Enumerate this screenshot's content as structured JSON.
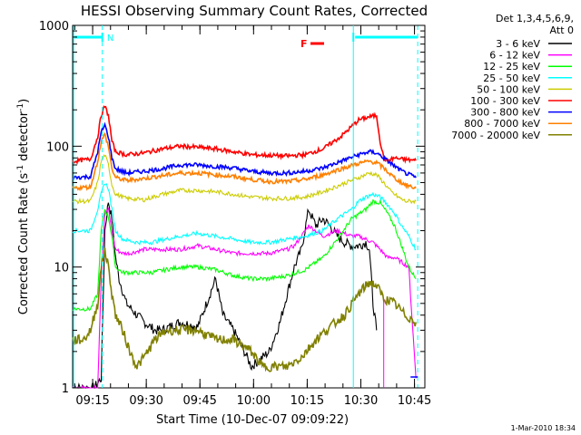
{
  "chart_data": {
    "type": "line",
    "title": "HESSI Observing Summary Count Rates, Corrected",
    "xlabel": "Start Time (10-Dec-07 09:09:22)",
    "ylabel_main": "Corrected Count Rate (s",
    "ylabel_sup1": "-1",
    "ylabel_mid": " detector",
    "ylabel_sup2": "-1",
    "ylabel_end": ")",
    "footer": "1-Mar-2010 18:34",
    "legend_title1": "Det 1,3,4,5,6,9,",
    "legend_title2": "Att 0",
    "ylog": true,
    "ylim": [
      1,
      1000
    ],
    "xlim_minutes": [
      0,
      36.5
    ],
    "x_tick_labels": [
      {
        "label": "09:15",
        "min": 5.6
      },
      {
        "label": "09:30",
        "min": 20.6
      },
      {
        "label": "09:45",
        "min": 35.6
      },
      {
        "label": "10:00",
        "min": 50.6
      },
      {
        "label": "10:15",
        "min": 65.6
      },
      {
        "label": "10:30",
        "min": 80.6
      },
      {
        "label": "10:45",
        "min": 95.6
      }
    ],
    "x_range_minutes": [
      0,
      98.5
    ],
    "y_tick_labels": [
      {
        "label": "1",
        "value": 1
      },
      {
        "label": "10",
        "value": 10
      },
      {
        "label": "100",
        "value": 100
      },
      {
        "label": "1000",
        "value": 1000
      }
    ],
    "attenuator_label": "N",
    "flare_label": "F",
    "series": [
      {
        "name": "3 - 6 keV",
        "color": "#000000",
        "points": [
          [
            0,
            1.0
          ],
          [
            4,
            1.0
          ],
          [
            6,
            1.0
          ],
          [
            8,
            1.2
          ],
          [
            9,
            20
          ],
          [
            10,
            35
          ],
          [
            11,
            25
          ],
          [
            12,
            12
          ],
          [
            13,
            8
          ],
          [
            15,
            5
          ],
          [
            18,
            4
          ],
          [
            20,
            3.5
          ],
          [
            23,
            3
          ],
          [
            25,
            3
          ],
          [
            30,
            3.5
          ],
          [
            35,
            3.2
          ],
          [
            40,
            8
          ],
          [
            42,
            4
          ],
          [
            45,
            3
          ],
          [
            48,
            2
          ],
          [
            50,
            1.5
          ],
          [
            55,
            2
          ],
          [
            58,
            3.5
          ],
          [
            60,
            6
          ],
          [
            62,
            10
          ],
          [
            64,
            14
          ],
          [
            66,
            30
          ],
          [
            68,
            22
          ],
          [
            70,
            25
          ],
          [
            72,
            22
          ],
          [
            74,
            18
          ],
          [
            76,
            16
          ],
          [
            78,
            15
          ],
          [
            80,
            15
          ],
          [
            82,
            16
          ],
          [
            83,
            14
          ],
          [
            84,
            5
          ],
          [
            85,
            3
          ]
        ]
      },
      {
        "name": "6 - 12 keV",
        "color": "#ff00ff",
        "points": [
          [
            0,
            1.0
          ],
          [
            7,
            1.0
          ],
          [
            8,
            8
          ],
          [
            9,
            28
          ],
          [
            10,
            30
          ],
          [
            11,
            20
          ],
          [
            12,
            14
          ],
          [
            14,
            13
          ],
          [
            16,
            13
          ],
          [
            20,
            14
          ],
          [
            25,
            14
          ],
          [
            30,
            14
          ],
          [
            35,
            15
          ],
          [
            40,
            14
          ],
          [
            45,
            13
          ],
          [
            50,
            13
          ],
          [
            55,
            13
          ],
          [
            60,
            14
          ],
          [
            62,
            15
          ],
          [
            64,
            18
          ],
          [
            66,
            22
          ],
          [
            68,
            20
          ],
          [
            70,
            18
          ],
          [
            72,
            19
          ],
          [
            74,
            20
          ],
          [
            76,
            19
          ],
          [
            78,
            18
          ],
          [
            80,
            18
          ],
          [
            82,
            17
          ],
          [
            84,
            16
          ],
          [
            86,
            14
          ],
          [
            88,
            12
          ],
          [
            90,
            12
          ],
          [
            92,
            11
          ],
          [
            94,
            10
          ],
          [
            96,
            1.2
          ]
        ]
      },
      {
        "name": "12 - 25 keV",
        "color": "#00ff00",
        "points": [
          [
            0,
            4.5
          ],
          [
            5,
            4.5
          ],
          [
            7,
            6
          ],
          [
            8,
            20
          ],
          [
            9,
            30
          ],
          [
            10,
            26
          ],
          [
            11,
            18
          ],
          [
            12,
            10
          ],
          [
            14,
            9
          ],
          [
            18,
            9
          ],
          [
            22,
            9
          ],
          [
            26,
            9.5
          ],
          [
            30,
            10
          ],
          [
            35,
            10
          ],
          [
            40,
            9.5
          ],
          [
            45,
            8.5
          ],
          [
            50,
            8
          ],
          [
            55,
            8
          ],
          [
            60,
            8.5
          ],
          [
            65,
            9.5
          ],
          [
            70,
            12
          ],
          [
            74,
            17
          ],
          [
            78,
            25
          ],
          [
            82,
            30
          ],
          [
            84,
            35
          ],
          [
            86,
            34
          ],
          [
            88,
            28
          ],
          [
            90,
            22
          ],
          [
            92,
            15
          ],
          [
            94,
            10
          ],
          [
            96,
            8
          ]
        ]
      },
      {
        "name": "25 - 50 keV",
        "color": "#00ffff",
        "points": [
          [
            0,
            20
          ],
          [
            5,
            20
          ],
          [
            7,
            30
          ],
          [
            8,
            40
          ],
          [
            9,
            50
          ],
          [
            10,
            45
          ],
          [
            11,
            30
          ],
          [
            12,
            20
          ],
          [
            14,
            17
          ],
          [
            18,
            16
          ],
          [
            22,
            16
          ],
          [
            26,
            17
          ],
          [
            30,
            18
          ],
          [
            35,
            19
          ],
          [
            40,
            18
          ],
          [
            45,
            17
          ],
          [
            50,
            16
          ],
          [
            55,
            16
          ],
          [
            60,
            17
          ],
          [
            65,
            18
          ],
          [
            70,
            20
          ],
          [
            74,
            25
          ],
          [
            78,
            30
          ],
          [
            80,
            35
          ],
          [
            82,
            38
          ],
          [
            84,
            40
          ],
          [
            86,
            38
          ],
          [
            88,
            33
          ],
          [
            90,
            28
          ],
          [
            92,
            22
          ],
          [
            94,
            18
          ],
          [
            96,
            14
          ]
        ]
      },
      {
        "name": "50 - 100 keV",
        "color": "#cccc00",
        "points": [
          [
            0,
            35
          ],
          [
            5,
            35
          ],
          [
            7,
            50
          ],
          [
            8,
            75
          ],
          [
            9,
            85
          ],
          [
            10,
            70
          ],
          [
            11,
            48
          ],
          [
            12,
            40
          ],
          [
            15,
            37
          ],
          [
            20,
            36
          ],
          [
            25,
            40
          ],
          [
            30,
            43
          ],
          [
            35,
            43
          ],
          [
            40,
            42
          ],
          [
            45,
            40
          ],
          [
            50,
            38
          ],
          [
            55,
            37
          ],
          [
            60,
            37
          ],
          [
            65,
            38
          ],
          [
            70,
            42
          ],
          [
            75,
            48
          ],
          [
            80,
            55
          ],
          [
            83,
            60
          ],
          [
            85,
            58
          ],
          [
            87,
            50
          ],
          [
            89,
            42
          ],
          [
            91,
            38
          ],
          [
            93,
            35
          ],
          [
            96,
            35
          ]
        ]
      },
      {
        "name": "100 - 300 keV",
        "color": "#ff0000",
        "points": [
          [
            0,
            75
          ],
          [
            5,
            78
          ],
          [
            7,
            120
          ],
          [
            8,
            180
          ],
          [
            9,
            215
          ],
          [
            10,
            180
          ],
          [
            11,
            110
          ],
          [
            12,
            90
          ],
          [
            15,
            85
          ],
          [
            20,
            88
          ],
          [
            25,
            95
          ],
          [
            30,
            100
          ],
          [
            35,
            98
          ],
          [
            40,
            95
          ],
          [
            45,
            90
          ],
          [
            50,
            85
          ],
          [
            55,
            84
          ],
          [
            60,
            83
          ],
          [
            65,
            85
          ],
          [
            70,
            95
          ],
          [
            75,
            120
          ],
          [
            80,
            165
          ],
          [
            83,
            175
          ],
          [
            85,
            180
          ],
          [
            86,
            110
          ],
          [
            87,
            80
          ],
          [
            88,
            75
          ],
          [
            90,
            80
          ],
          [
            92,
            78
          ],
          [
            96,
            76
          ]
        ]
      },
      {
        "name": "300 - 800 keV",
        "color": "#0000ff",
        "points": [
          [
            0,
            55
          ],
          [
            5,
            56
          ],
          [
            7,
            90
          ],
          [
            8,
            130
          ],
          [
            9,
            150
          ],
          [
            10,
            120
          ],
          [
            11,
            80
          ],
          [
            12,
            65
          ],
          [
            15,
            60
          ],
          [
            20,
            62
          ],
          [
            25,
            65
          ],
          [
            30,
            70
          ],
          [
            35,
            70
          ],
          [
            40,
            68
          ],
          [
            45,
            66
          ],
          [
            50,
            62
          ],
          [
            55,
            60
          ],
          [
            60,
            60
          ],
          [
            65,
            62
          ],
          [
            70,
            66
          ],
          [
            75,
            75
          ],
          [
            80,
            85
          ],
          [
            83,
            90
          ],
          [
            85,
            88
          ],
          [
            87,
            80
          ],
          [
            89,
            72
          ],
          [
            91,
            65
          ],
          [
            93,
            60
          ],
          [
            96,
            55
          ]
        ]
      },
      {
        "name": "800 - 7000 keV",
        "color": "#ff8000",
        "points": [
          [
            0,
            45
          ],
          [
            5,
            46
          ],
          [
            7,
            75
          ],
          [
            8,
            110
          ],
          [
            9,
            125
          ],
          [
            10,
            100
          ],
          [
            11,
            65
          ],
          [
            12,
            55
          ],
          [
            15,
            52
          ],
          [
            20,
            54
          ],
          [
            25,
            57
          ],
          [
            30,
            60
          ],
          [
            35,
            60
          ],
          [
            40,
            58
          ],
          [
            45,
            56
          ],
          [
            50,
            53
          ],
          [
            55,
            51
          ],
          [
            60,
            51
          ],
          [
            65,
            53
          ],
          [
            70,
            58
          ],
          [
            75,
            65
          ],
          [
            80,
            72
          ],
          [
            83,
            75
          ],
          [
            85,
            73
          ],
          [
            87,
            66
          ],
          [
            89,
            58
          ],
          [
            91,
            52
          ],
          [
            93,
            48
          ],
          [
            96,
            45
          ]
        ]
      },
      {
        "name": "7000 - 20000 keV",
        "color": "#808000",
        "points": [
          [
            0,
            2.5
          ],
          [
            3,
            2.5
          ],
          [
            5,
            3
          ],
          [
            7,
            5
          ],
          [
            8,
            10
          ],
          [
            9,
            14
          ],
          [
            10,
            10
          ],
          [
            11,
            6
          ],
          [
            12,
            4
          ],
          [
            14,
            3
          ],
          [
            16,
            2
          ],
          [
            18,
            1.5
          ],
          [
            20,
            1.8
          ],
          [
            23,
            2.5
          ],
          [
            26,
            3
          ],
          [
            30,
            3
          ],
          [
            35,
            3
          ],
          [
            40,
            2.5
          ],
          [
            45,
            2.5
          ],
          [
            50,
            2
          ],
          [
            53,
            1.5
          ],
          [
            57,
            1.5
          ],
          [
            60,
            1.5
          ],
          [
            64,
            1.8
          ],
          [
            68,
            2.5
          ],
          [
            72,
            3.2
          ],
          [
            76,
            4
          ],
          [
            80,
            6
          ],
          [
            83,
            7.5
          ],
          [
            85,
            7
          ],
          [
            87,
            5.5
          ],
          [
            90,
            5
          ],
          [
            93,
            4
          ],
          [
            96,
            3.5
          ]
        ]
      }
    ]
  }
}
